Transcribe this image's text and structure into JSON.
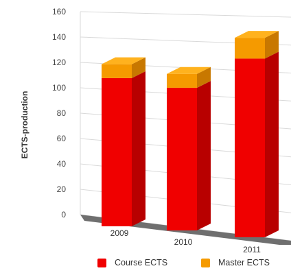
{
  "chart_data": {
    "type": "bar",
    "stacked": true,
    "three_d": true,
    "categories": [
      "2009",
      "2010",
      "2011"
    ],
    "series": [
      {
        "name": "Course ECTS",
        "values": [
          107,
          103,
          129
        ]
      },
      {
        "name": "Master ECTS",
        "values": [
          10,
          10,
          15
        ]
      }
    ],
    "title": "",
    "xlabel": "",
    "ylabel": "ECTS-production",
    "ylim": [
      0,
      160
    ],
    "yticks": [
      "0",
      "20",
      "40",
      "60",
      "80",
      "100",
      "120",
      "140",
      "160"
    ],
    "grid": true,
    "legend_position": "bottom",
    "colors": {
      "course_front": "#f00000",
      "course_side": "#b80000",
      "course_top": "#ff3b2a",
      "master_front": "#f59a00",
      "master_side": "#c87800",
      "master_top": "#ffb21e",
      "floor": "#6f6f6f",
      "grid": "#d9d9d9"
    }
  }
}
